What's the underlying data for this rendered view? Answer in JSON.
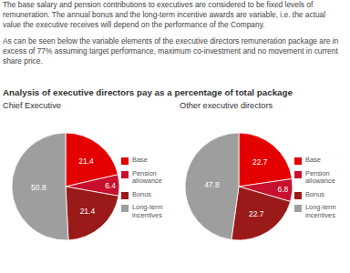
{
  "paragraphs": [
    "The base salary and pension contributions to executives are considered to be fixed levels of remuneration. The annual bonus and the long-term incentive awards are variable, i.e. the actual value the executive receives will depend on the performance of the Company.",
    "As can be seen below the variable elements of the executive directors remuneration package are in excess of 77% assuming target performance, maximum co-investment and no movement in current share price."
  ],
  "heading": "Analysis of executive directors pay as a percentage of total package",
  "chart_data": [
    {
      "type": "pie",
      "title": "Chief Executive",
      "categories": [
        "Base",
        "Pension allowance",
        "Bonus",
        "Long-term incentives"
      ],
      "values": [
        21.4,
        6.4,
        21.4,
        50.8
      ],
      "colors": [
        "#e50000",
        "#c8102e",
        "#9a1a1a",
        "#9e9e9e"
      ],
      "data_labels": true
    },
    {
      "type": "pie",
      "title": "Other executive directors",
      "categories": [
        "Base",
        "Pension allowance",
        "Bonus",
        "Long-term incentives"
      ],
      "values": [
        22.7,
        6.8,
        22.7,
        47.8
      ],
      "colors": [
        "#e50000",
        "#c8102e",
        "#9a1a1a",
        "#9e9e9e"
      ],
      "data_labels": true
    }
  ]
}
